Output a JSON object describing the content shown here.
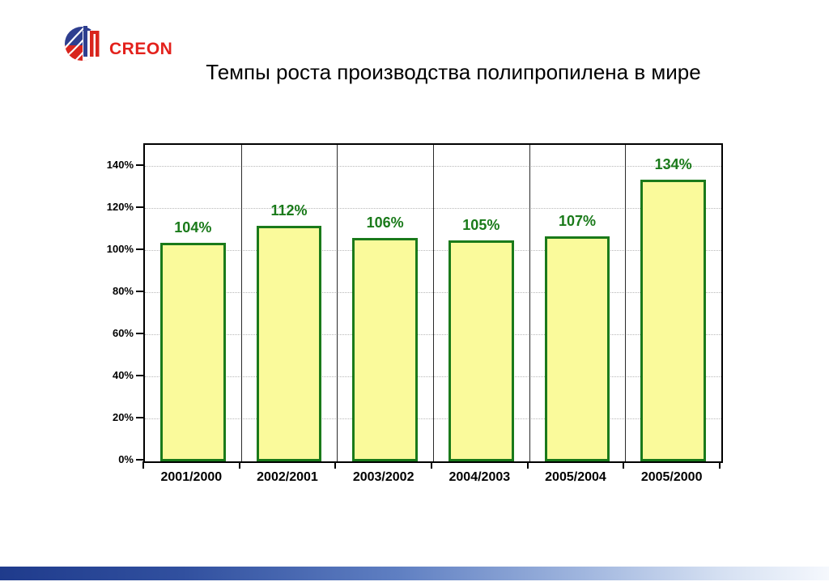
{
  "logo": {
    "text": "CREON",
    "text_color": "#E3211C",
    "navy": "#2E3E8F",
    "red": "#D9251D"
  },
  "title": "Темпы роста производства полипропилена в мире",
  "chart_data": {
    "type": "bar",
    "title": "Темпы роста производства полипропилена в мире",
    "categories": [
      "2001/2000",
      "2002/2001",
      "2003/2002",
      "2004/2003",
      "2005/2004",
      "2005/2000"
    ],
    "values": [
      104,
      112,
      106,
      105,
      107,
      134
    ],
    "value_labels": [
      "104%",
      "112%",
      "106%",
      "105%",
      "107%",
      "134%"
    ],
    "xlabel": "",
    "ylabel": "",
    "ylim": [
      0,
      150.4
    ],
    "ytick_values": [
      0,
      20,
      40,
      60,
      80,
      100,
      120,
      140
    ],
    "ytick_labels": [
      "0%",
      "20%",
      "40%",
      "60%",
      "80%",
      "100%",
      "120%",
      "140%"
    ],
    "grid": "horizontal-dotted",
    "legend": "none",
    "bar_fill": "#FAFA9B",
    "bar_border": "#1A7A1A",
    "value_label_color": "#1A7A1A",
    "gridline_color": "#b8b8b8"
  },
  "footer": {
    "gradient_left": "#1F3B8C",
    "gradient_right": "#F5F8FD"
  }
}
